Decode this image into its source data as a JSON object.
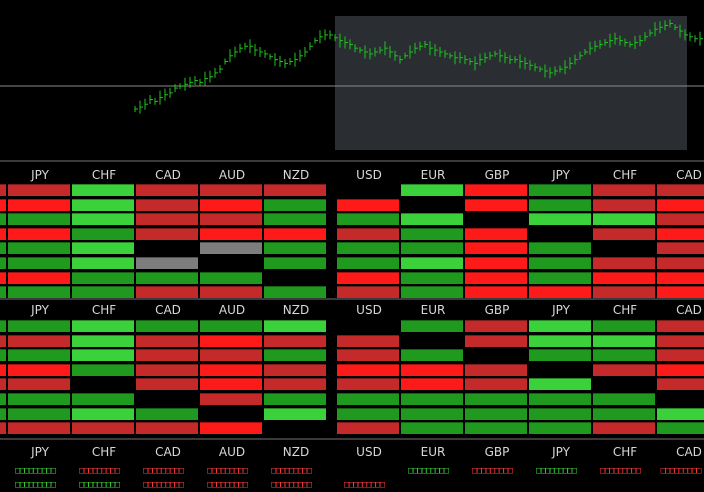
{
  "colors": {
    "strong_red": "#ff1a1a",
    "red": "#c42a2a",
    "dark_red": "#a82424",
    "strong_green": "#3ad13a",
    "green": "#1f9a1f",
    "dark_green": "#0d7a0d",
    "gray": "#7d7d7d",
    "none": "#000000",
    "header_text": "#d8d8d8",
    "chart_line": "#1fc21f",
    "chart_box": "#2a2e33",
    "separator": "#3a3a3a"
  },
  "columns": [
    "JPY",
    "CHF",
    "CAD",
    "AUD",
    "NZD",
    "USD",
    "EUR",
    "GBP",
    "JPY",
    "CHF",
    "CAD"
  ],
  "blocks": [
    {
      "name": "block-1",
      "rows": [
        [
          "R",
          "SG",
          "R",
          "R",
          "R",
          "N",
          "SG",
          "SR",
          "G",
          "R",
          "R"
        ],
        [
          "SR",
          "SG",
          "R",
          "SR",
          "G",
          "SR",
          "N",
          "SR",
          "G",
          "R",
          "SR"
        ],
        [
          "G",
          "SG",
          "R",
          "R",
          "G",
          "G",
          "SG",
          "N",
          "SG",
          "SG",
          "R"
        ],
        [
          "SR",
          "G",
          "R",
          "SR",
          "SR",
          "R",
          "G",
          "SR",
          "N",
          "R",
          "SR"
        ],
        [
          "G",
          "SG",
          "N",
          "GR",
          "G",
          "G",
          "G",
          "SR",
          "G",
          "N",
          "R"
        ],
        [
          "G",
          "SG",
          "GR",
          "N",
          "G",
          "G",
          "SG",
          "SR",
          "G",
          "R",
          "R"
        ],
        [
          "SR",
          "G",
          "G",
          "G",
          "N",
          "SR",
          "G",
          "SR",
          "G",
          "SR",
          "SR"
        ],
        [
          "G",
          "G",
          "R",
          "R",
          "G",
          "R",
          "G",
          "SR",
          "SR",
          "R",
          "SR"
        ]
      ]
    },
    {
      "name": "block-2",
      "rows": [
        [
          "G",
          "SG",
          "G",
          "G",
          "SG",
          "N",
          "G",
          "R",
          "SG",
          "G",
          "R"
        ],
        [
          "R",
          "SG",
          "R",
          "SR",
          "R",
          "R",
          "N",
          "R",
          "SG",
          "SG",
          "R"
        ],
        [
          "G",
          "SG",
          "R",
          "R",
          "G",
          "R",
          "G",
          "N",
          "G",
          "G",
          "R"
        ],
        [
          "SR",
          "G",
          "R",
          "SR",
          "R",
          "SR",
          "SR",
          "R",
          "N",
          "R",
          "SR"
        ],
        [
          "R",
          "N",
          "R",
          "SR",
          "R",
          "R",
          "SR",
          "R",
          "SG",
          "N",
          "R"
        ],
        [
          "G",
          "G",
          "N",
          "R",
          "G",
          "G",
          "G",
          "G",
          "G",
          "G",
          "N"
        ],
        [
          "G",
          "SG",
          "G",
          "N",
          "SG",
          "G",
          "G",
          "G",
          "G",
          "G",
          "SG"
        ],
        [
          "R",
          "R",
          "R",
          "SR",
          "N",
          "R",
          "G",
          "G",
          "G",
          "R",
          "G"
        ]
      ]
    }
  ],
  "footer": {
    "row1": [
      "SG",
      "R",
      "R",
      "R",
      "R",
      "N",
      "SG",
      "R",
      "G",
      "R",
      "R"
    ],
    "row2": [
      "SG",
      "G",
      "R",
      "R",
      "R",
      "R",
      "N",
      "N",
      "N",
      "N",
      "N"
    ]
  },
  "mini_text": "□□□□□□□□□",
  "chart_data": {
    "type": "line",
    "x": [
      0,
      5,
      10,
      15,
      20,
      25,
      30,
      35,
      40,
      45,
      50,
      55,
      60,
      65,
      70,
      75,
      80,
      85,
      90,
      95,
      100,
      105,
      110,
      115,
      120,
      125,
      130,
      135,
      140,
      145,
      150,
      155,
      160,
      165,
      170,
      175,
      180,
      185,
      190,
      195,
      200,
      205,
      210,
      215,
      220,
      225,
      230,
      235,
      240,
      245,
      250,
      255,
      260,
      265,
      270,
      275,
      280,
      285,
      290,
      295,
      300,
      305,
      310,
      315,
      320,
      325,
      330,
      335,
      340,
      345,
      350,
      355,
      360,
      365,
      370,
      375,
      380,
      385,
      390,
      395,
      400,
      405,
      410,
      415,
      420,
      425,
      430,
      435,
      440,
      445,
      450,
      455,
      460,
      465,
      470,
      475,
      480,
      485,
      490,
      495,
      500,
      505,
      510,
      515,
      520,
      525,
      530,
      535,
      540,
      545,
      550,
      555,
      560,
      565,
      570,
      575,
      580,
      585,
      590,
      595,
      600,
      605,
      610,
      615,
      620,
      625,
      630,
      635,
      640,
      645,
      650,
      655,
      660,
      665,
      670,
      675,
      680,
      685
    ],
    "y": [
      -20,
      -18,
      -15,
      -10,
      -12,
      -8,
      -5,
      -3,
      2,
      4,
      6,
      8,
      10,
      8,
      12,
      14,
      18,
      22,
      30,
      36,
      40,
      44,
      46,
      46,
      42,
      40,
      38,
      35,
      32,
      30,
      28,
      30,
      32,
      36,
      40,
      46,
      52,
      56,
      58,
      58,
      55,
      52,
      50,
      48,
      44,
      42,
      40,
      38,
      40,
      42,
      44,
      40,
      36,
      32,
      36,
      40,
      44,
      46,
      48,
      44,
      42,
      40,
      38,
      36,
      34,
      34,
      32,
      30,
      28,
      32,
      34,
      36,
      38,
      36,
      34,
      32,
      32,
      30,
      28,
      26,
      24,
      22,
      20,
      18,
      20,
      22,
      24,
      28,
      32,
      36,
      40,
      44,
      46,
      48,
      50,
      52,
      54,
      52,
      50,
      48,
      50,
      52,
      56,
      60,
      64,
      66,
      68,
      70,
      66,
      62,
      58,
      56,
      54,
      54,
      56,
      58,
      60,
      56,
      52,
      50,
      52,
      56,
      60,
      62,
      60,
      58,
      56,
      54,
      52,
      56,
      58,
      58,
      56,
      54,
      50,
      46,
      42,
      40
    ],
    "box_x": [
      335,
      687
    ],
    "hline_y": 86
  }
}
